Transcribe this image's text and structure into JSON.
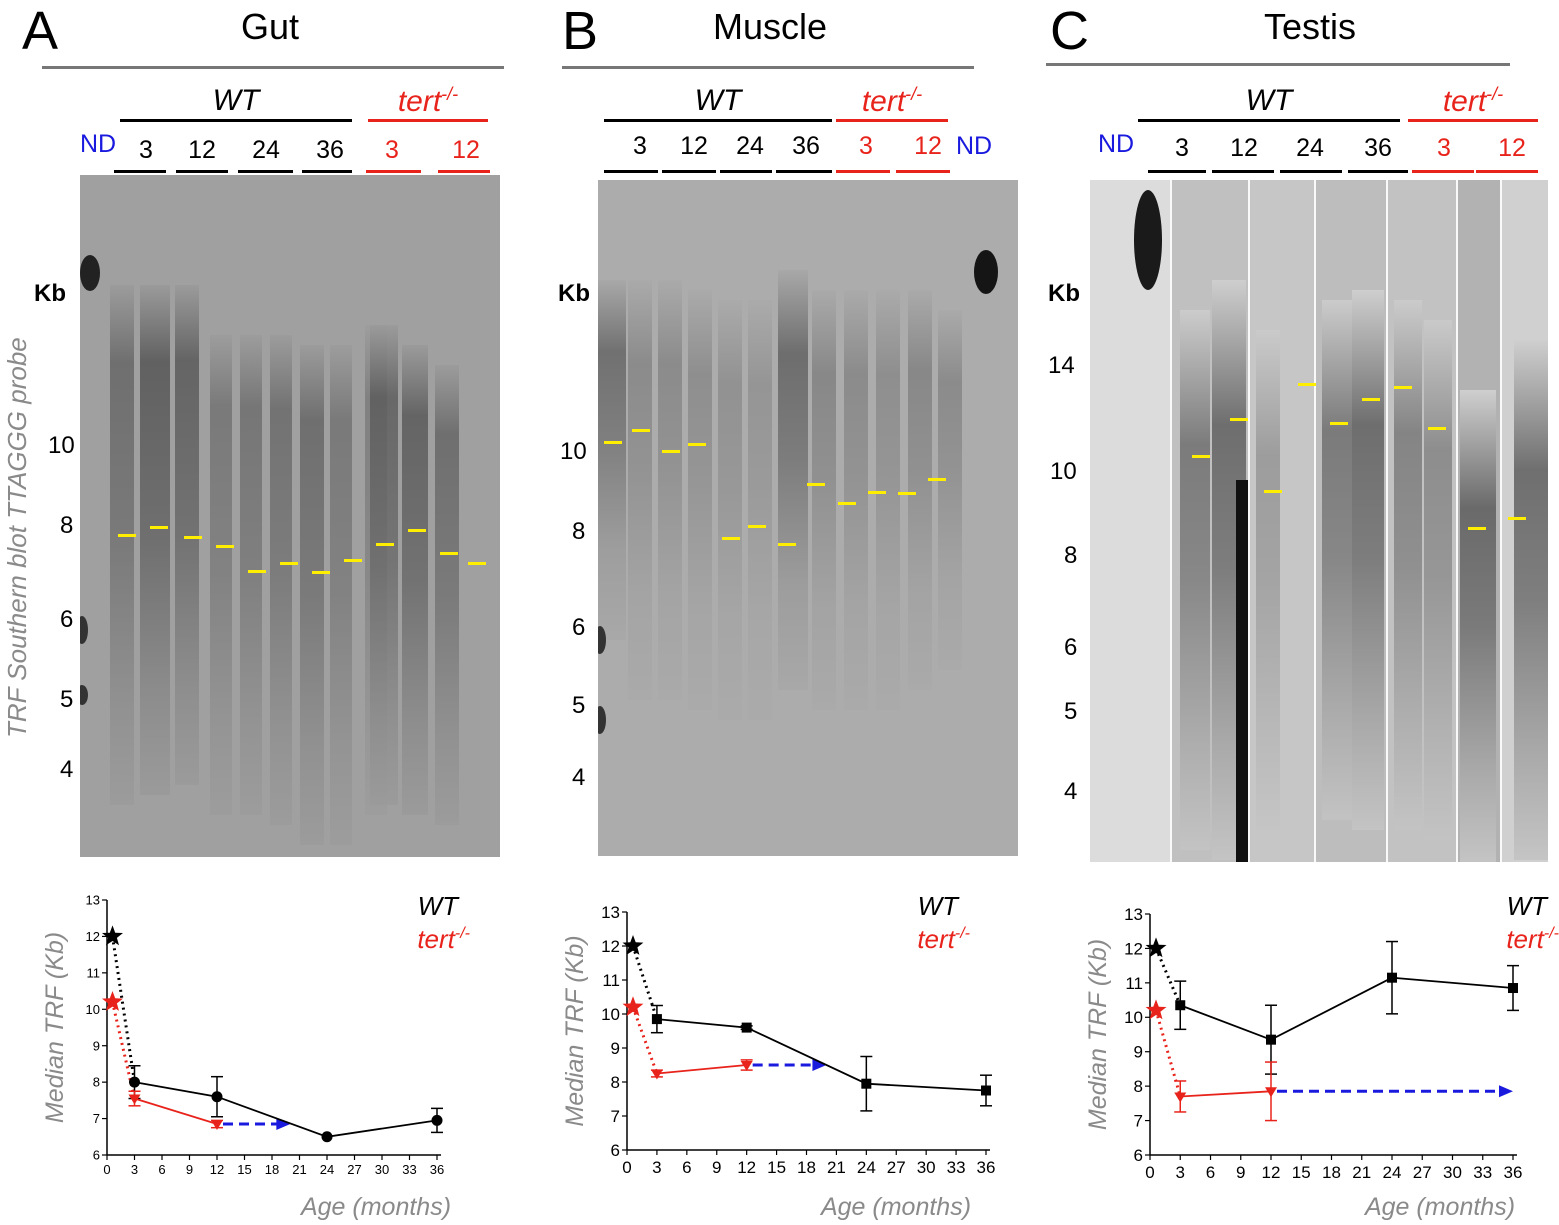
{
  "panels": [
    {
      "letter": "A",
      "tissue": "Gut",
      "wt": "WT",
      "tert": "tert",
      "tert_sup": "-/-",
      "nd": "ND",
      "wt_lanes": [
        "3",
        "12",
        "24",
        "36"
      ],
      "tert_lanes": [
        "3",
        "12"
      ],
      "kb_head": "Kb",
      "kb_ticks": [
        "10",
        "8",
        "6",
        "5",
        "4"
      ]
    },
    {
      "letter": "B",
      "tissue": "Muscle",
      "wt": "WT",
      "tert": "tert",
      "tert_sup": "-/-",
      "nd": "ND",
      "wt_lanes": [
        "3",
        "12",
        "24",
        "36"
      ],
      "tert_lanes": [
        "3",
        "12"
      ],
      "kb_head": "Kb",
      "kb_ticks": [
        "10",
        "8",
        "6",
        "5",
        "4"
      ]
    },
    {
      "letter": "C",
      "tissue": "Testis",
      "wt": "WT",
      "tert": "tert",
      "tert_sup": "-/-",
      "nd": "ND",
      "wt_lanes": [
        "3",
        "12",
        "24",
        "36"
      ],
      "tert_lanes": [
        "3",
        "12"
      ],
      "kb_head": "Kb",
      "kb_ticks": [
        "14",
        "10",
        "8",
        "6",
        "5",
        "4"
      ]
    }
  ],
  "blot_ylabel": "TRF Southern blot TTAGGG probe",
  "colors": {
    "wt": "#000000",
    "tert": "#e8231b",
    "arrow": "#1a1adf",
    "median_mark": "#ffee00"
  },
  "chart_data": [
    {
      "type": "line",
      "title": "",
      "xlabel": "Age (months)",
      "ylabel": "Median TRF (Kb)",
      "xlim": [
        0,
        36
      ],
      "ylim": [
        6,
        13
      ],
      "xticks": [
        0,
        3,
        6,
        9,
        12,
        15,
        18,
        21,
        24,
        27,
        30,
        33,
        36
      ],
      "yticks": [
        6,
        7,
        8,
        9,
        10,
        11,
        12,
        13
      ],
      "legend": [
        "WT",
        "tert-/-"
      ],
      "series": [
        {
          "name": "WT",
          "x": [
            3,
            12,
            24,
            36
          ],
          "y": [
            8.0,
            7.6,
            6.5,
            6.95
          ],
          "err": [
            0.45,
            0.55,
            0.0,
            0.33
          ]
        },
        {
          "name": "tert-/-",
          "x": [
            3,
            12
          ],
          "y": [
            7.55,
            6.85
          ],
          "err": [
            0.2,
            0.1
          ]
        }
      ],
      "ND": {
        "WT": 12.0,
        "tert-/-": 10.2
      },
      "arrow_to_x": 20
    },
    {
      "type": "line",
      "title": "",
      "xlabel": "Age (months)",
      "ylabel": "Median TRF (Kb)",
      "xlim": [
        0,
        36
      ],
      "ylim": [
        6,
        13
      ],
      "xticks": [
        0,
        3,
        6,
        9,
        12,
        15,
        18,
        21,
        24,
        27,
        30,
        33,
        36
      ],
      "yticks": [
        6,
        7,
        8,
        9,
        10,
        11,
        12,
        13
      ],
      "legend": [
        "WT",
        "tert-/-"
      ],
      "series": [
        {
          "name": "WT",
          "x": [
            3,
            12,
            24,
            36
          ],
          "y": [
            9.85,
            9.6,
            7.95,
            7.75
          ],
          "err": [
            0.4,
            0.05,
            0.8,
            0.45
          ]
        },
        {
          "name": "tert-/-",
          "x": [
            3,
            12
          ],
          "y": [
            8.25,
            8.5
          ],
          "err": [
            0.1,
            0.15
          ]
        }
      ],
      "ND": {
        "WT": 12.0,
        "tert-/-": 10.2
      },
      "arrow_to_x": 20
    },
    {
      "type": "line",
      "title": "",
      "xlabel": "Age (months)",
      "ylabel": "Median TRF (Kb)",
      "xlim": [
        0,
        36
      ],
      "ylim": [
        6,
        13
      ],
      "xticks": [
        0,
        3,
        6,
        9,
        12,
        15,
        18,
        21,
        24,
        27,
        30,
        33,
        36
      ],
      "yticks": [
        6,
        7,
        8,
        9,
        10,
        11,
        12,
        13
      ],
      "legend": [
        "WT",
        "tert-/-"
      ],
      "series": [
        {
          "name": "WT",
          "x": [
            3,
            12,
            24,
            36
          ],
          "y": [
            10.35,
            9.35,
            11.15,
            10.85
          ],
          "err": [
            0.7,
            1.0,
            1.05,
            0.65
          ]
        },
        {
          "name": "tert-/-",
          "x": [
            3,
            12
          ],
          "y": [
            7.7,
            7.85
          ],
          "err": [
            0.45,
            0.85
          ]
        }
      ],
      "ND": {
        "WT": 12.0,
        "tert-/-": 10.2
      },
      "arrow_to_x": 36
    }
  ]
}
